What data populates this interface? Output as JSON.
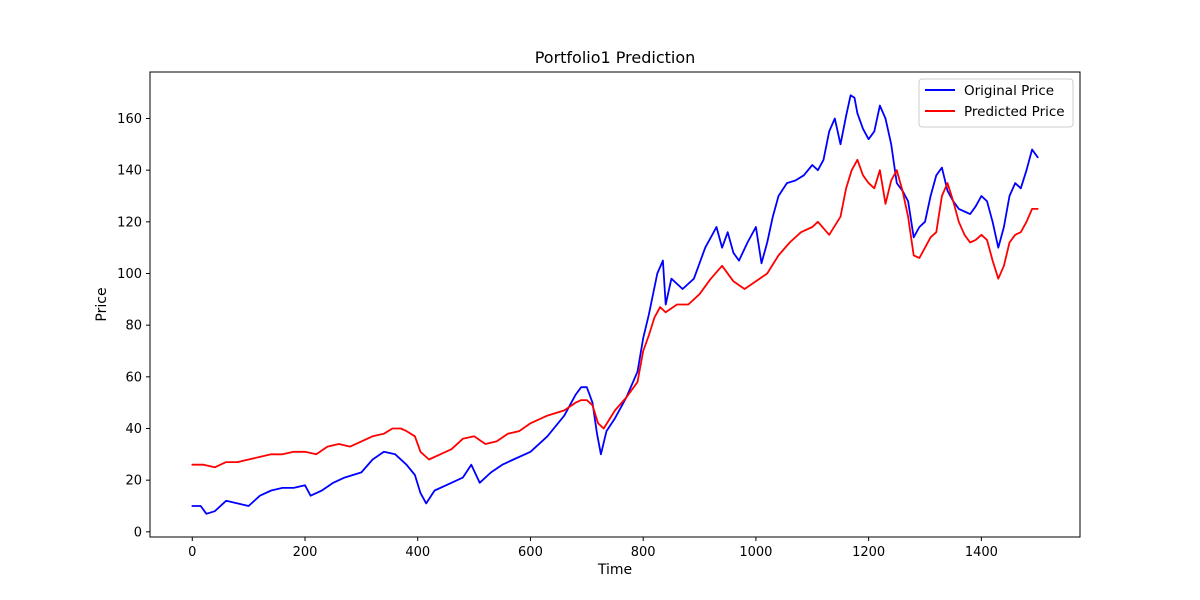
{
  "chart_data": {
    "type": "line",
    "title": "Portfolio1 Prediction",
    "xlabel": "Time",
    "ylabel": "Price",
    "xlim": [
      -75,
      1575
    ],
    "ylim": [
      -2,
      178
    ],
    "xticks": [
      0,
      200,
      400,
      600,
      800,
      1000,
      1200,
      1400
    ],
    "yticks": [
      0,
      20,
      40,
      60,
      80,
      100,
      120,
      140,
      160
    ],
    "legend_position": "top-right",
    "grid": false,
    "series": [
      {
        "name": "Original Price",
        "color": "#0000ff",
        "x": [
          0,
          15,
          25,
          40,
          60,
          80,
          100,
          120,
          140,
          160,
          180,
          200,
          210,
          230,
          250,
          270,
          300,
          320,
          340,
          360,
          380,
          395,
          405,
          415,
          430,
          460,
          480,
          495,
          510,
          530,
          550,
          570,
          600,
          630,
          660,
          680,
          690,
          700,
          710,
          718,
          725,
          735,
          750,
          770,
          790,
          800,
          810,
          825,
          835,
          840,
          850,
          870,
          890,
          910,
          930,
          940,
          950,
          960,
          970,
          985,
          1000,
          1010,
          1020,
          1030,
          1040,
          1055,
          1070,
          1085,
          1100,
          1110,
          1120,
          1130,
          1140,
          1150,
          1160,
          1168,
          1175,
          1180,
          1190,
          1200,
          1210,
          1220,
          1230,
          1240,
          1250,
          1260,
          1270,
          1280,
          1290,
          1300,
          1310,
          1320,
          1330,
          1340,
          1350,
          1360,
          1370,
          1380,
          1390,
          1400,
          1410,
          1420,
          1430,
          1440,
          1450,
          1460,
          1470,
          1480,
          1490,
          1500
        ],
        "y": [
          10,
          10,
          7,
          8,
          12,
          11,
          10,
          14,
          16,
          17,
          17,
          18,
          14,
          16,
          19,
          21,
          23,
          28,
          31,
          30,
          26,
          22,
          15,
          11,
          16,
          19,
          21,
          26,
          19,
          23,
          26,
          28,
          31,
          37,
          45,
          53,
          56,
          56,
          50,
          38,
          30,
          39,
          44,
          52,
          62,
          75,
          84,
          100,
          105,
          88,
          98,
          94,
          98,
          110,
          118,
          110,
          116,
          108,
          105,
          112,
          118,
          104,
          112,
          122,
          130,
          135,
          136,
          138,
          142,
          140,
          144,
          155,
          160,
          150,
          161,
          169,
          168,
          162,
          156,
          152,
          155,
          165,
          160,
          150,
          135,
          132,
          128,
          114,
          118,
          120,
          130,
          138,
          141,
          132,
          128,
          125,
          124,
          123,
          126,
          130,
          128,
          120,
          110,
          118,
          130,
          135,
          133,
          140,
          148,
          145
        ]
      },
      {
        "name": "Predicted Price",
        "color": "#ff0000",
        "x": [
          0,
          20,
          40,
          60,
          80,
          100,
          120,
          140,
          160,
          180,
          200,
          220,
          240,
          260,
          280,
          300,
          320,
          340,
          355,
          370,
          380,
          395,
          405,
          420,
          440,
          460,
          480,
          500,
          520,
          540,
          560,
          580,
          600,
          630,
          660,
          680,
          690,
          700,
          710,
          720,
          730,
          750,
          770,
          790,
          800,
          810,
          820,
          830,
          840,
          860,
          880,
          900,
          920,
          940,
          960,
          980,
          1000,
          1020,
          1040,
          1060,
          1080,
          1100,
          1110,
          1130,
          1150,
          1160,
          1170,
          1180,
          1190,
          1200,
          1210,
          1220,
          1230,
          1240,
          1250,
          1260,
          1270,
          1280,
          1290,
          1300,
          1310,
          1320,
          1330,
          1340,
          1350,
          1360,
          1370,
          1380,
          1390,
          1400,
          1410,
          1420,
          1430,
          1440,
          1450,
          1460,
          1470,
          1480,
          1490,
          1500
        ],
        "y": [
          26,
          26,
          25,
          27,
          27,
          28,
          29,
          30,
          30,
          31,
          31,
          30,
          33,
          34,
          33,
          35,
          37,
          38,
          40,
          40,
          39,
          37,
          31,
          28,
          30,
          32,
          36,
          37,
          34,
          35,
          38,
          39,
          42,
          45,
          47,
          50,
          51,
          51,
          49,
          42,
          40,
          47,
          52,
          58,
          70,
          76,
          83,
          87,
          85,
          88,
          88,
          92,
          98,
          103,
          97,
          94,
          97,
          100,
          107,
          112,
          116,
          118,
          120,
          115,
          122,
          133,
          140,
          144,
          138,
          135,
          133,
          140,
          127,
          136,
          140,
          132,
          122,
          107,
          106,
          110,
          114,
          116,
          130,
          135,
          128,
          120,
          115,
          112,
          113,
          115,
          113,
          105,
          98,
          103,
          112,
          115,
          116,
          120,
          125,
          125
        ]
      }
    ]
  }
}
